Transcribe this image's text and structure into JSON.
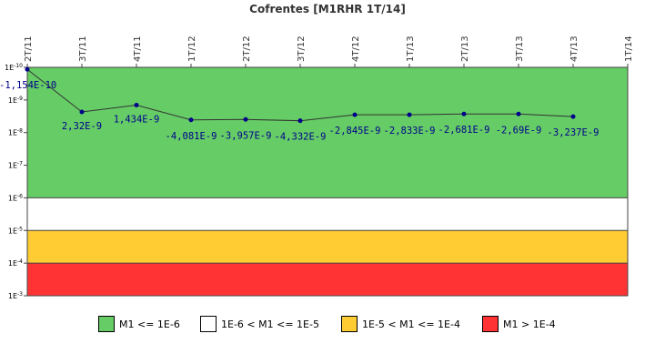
{
  "chart_data": {
    "type": "line",
    "title": "Cofrentes [M1RHR 1T/14]",
    "categories": [
      "2T/11",
      "3T/11",
      "4T/11",
      "1T/12",
      "2T/12",
      "3T/12",
      "4T/12",
      "1T/13",
      "2T/13",
      "3T/13",
      "4T/13",
      "1T/14"
    ],
    "y_axis": {
      "scale": "log",
      "inverted": true,
      "ticks": [
        "1E-10",
        "1E-9",
        "1E-8",
        "1E-7",
        "1E-6",
        "1E-5",
        "1E-4",
        "1E-3"
      ],
      "range": [
        "1E-10",
        "1E-3"
      ]
    },
    "series": [
      {
        "color": "#00008B",
        "values": [
          -1.154e-10,
          2.32e-09,
          1.434e-09,
          -4.081e-09,
          -3.957e-09,
          -4.332e-09,
          -2.845e-09,
          -2.833e-09,
          -2.681e-09,
          -2.69e-09,
          -3.237e-09,
          null
        ],
        "labels": [
          "-1,154E-10",
          "2,32E-9",
          "1,434E-9",
          "-4,081E-9",
          "-3,957E-9",
          "-4,332E-9",
          "-2,845E-9",
          "-2,833E-9",
          "-2,681E-9",
          "-2,69E-9",
          "-3,237E-9",
          ""
        ]
      }
    ],
    "bands": [
      {
        "from": "1E-10",
        "to": "1E-6",
        "color": "#66CC66"
      },
      {
        "from": "1E-6",
        "to": "1E-5",
        "color": "#FFFFFF"
      },
      {
        "from": "1E-5",
        "to": "1E-4",
        "color": "#FFCC33"
      },
      {
        "from": "1E-4",
        "to": "1E-3",
        "color": "#FF3333"
      }
    ],
    "legend": {
      "placement": "bottom",
      "items": [
        {
          "label": "M1 <= 1E-6",
          "color": "#66CC66"
        },
        {
          "label": "1E-6 < M1 <= 1E-5",
          "color": "#FFFFFF"
        },
        {
          "label": "1E-5 < M1 <= 1E-4",
          "color": "#FFCC33"
        },
        {
          "label": "M1 > 1E-4",
          "color": "#FF3333"
        }
      ]
    },
    "grid": false
  }
}
